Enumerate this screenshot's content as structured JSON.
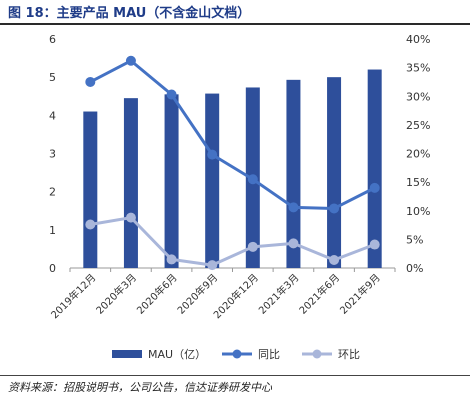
{
  "figure": {
    "title": "图 18：主要产品 MAU（不含金山文档）",
    "source": "资料来源：招股说明书，公司公告，信达证券研发中心"
  },
  "chart_data": {
    "type": "bar",
    "categories": [
      "2019年12月",
      "2020年3月",
      "2020年6月",
      "2020年9月",
      "2020年12月",
      "2021年3月",
      "2021年6月",
      "2021年9月"
    ],
    "series": [
      {
        "name": "MAU（亿）",
        "type": "bar",
        "axis": "left",
        "color": "#2e4f9b",
        "values": [
          4.1,
          4.45,
          4.55,
          4.57,
          4.73,
          4.93,
          5.0,
          5.2
        ]
      },
      {
        "name": "同比",
        "type": "line",
        "axis": "right",
        "color": "#4472c4",
        "values": [
          32.5,
          36.2,
          30.3,
          19.8,
          15.5,
          10.6,
          10.4,
          14.0
        ]
      },
      {
        "name": "环比",
        "type": "line",
        "axis": "right",
        "color": "#a9b6da",
        "values": [
          7.6,
          8.8,
          1.5,
          0.5,
          3.7,
          4.3,
          1.4,
          4.1
        ]
      }
    ],
    "left_axis": {
      "ylim": [
        0,
        6
      ],
      "ticks": [
        "0",
        "1",
        "2",
        "3",
        "4",
        "5",
        "6"
      ]
    },
    "right_axis": {
      "ylim": [
        0,
        40
      ],
      "ticks": [
        "0%",
        "5%",
        "10%",
        "15%",
        "20%",
        "25%",
        "30%",
        "35%",
        "40%"
      ]
    },
    "grid": false,
    "legend": {
      "placement": "bottom"
    }
  }
}
